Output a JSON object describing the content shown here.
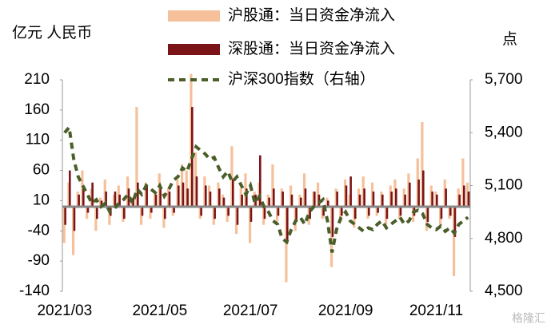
{
  "chart_data": {
    "type": "bar_line",
    "unit_left": "亿元  人民币",
    "unit_right": "点",
    "watermark": "格隆汇",
    "categories": [
      "2021/03",
      null,
      null,
      null,
      null,
      null,
      null,
      null,
      null,
      null,
      null,
      null,
      null,
      null,
      null,
      null,
      null,
      null,
      null,
      null,
      null,
      "2021/05",
      null,
      null,
      null,
      null,
      null,
      null,
      null,
      null,
      null,
      null,
      null,
      null,
      null,
      null,
      null,
      null,
      null,
      null,
      null,
      "2021/07",
      null,
      null,
      null,
      null,
      null,
      null,
      null,
      null,
      null,
      null,
      null,
      null,
      null,
      null,
      null,
      null,
      null,
      null,
      null,
      null,
      "2021/09",
      null,
      null,
      null,
      null,
      null,
      null,
      null,
      null,
      null,
      null,
      null,
      null,
      null,
      null,
      null,
      null,
      null,
      null,
      null,
      "2021/11",
      null,
      null,
      null,
      null,
      null,
      null,
      null
    ],
    "series": [
      {
        "name": "沪股通：当日资金净流入",
        "color": "#f5c09a",
        "values": [
          -60,
          40,
          -80,
          25,
          60,
          -20,
          30,
          -40,
          15,
          45,
          -30,
          20,
          35,
          -25,
          50,
          10,
          165,
          -30,
          40,
          -20,
          25,
          55,
          -35,
          30,
          -15,
          45,
          70,
          60,
          220,
          90,
          -20,
          50,
          35,
          -30,
          40,
          20,
          -25,
          100,
          -45,
          30,
          55,
          -60,
          25,
          40,
          -30,
          20,
          70,
          -25,
          30,
          -125,
          35,
          -40,
          20,
          55,
          -30,
          25,
          40,
          -20,
          15,
          -100,
          30,
          -25,
          45,
          20,
          -35,
          30,
          50,
          -20,
          40,
          -15,
          25,
          -30,
          35,
          45,
          -20,
          30,
          55,
          -25,
          80,
          140,
          -40,
          35,
          25,
          -30,
          45,
          -20,
          -115,
          30,
          80,
          40
        ]
      },
      {
        "name": "深股通：当日资金净流入",
        "color": "#7b1416",
        "values": [
          -30,
          60,
          -40,
          20,
          30,
          -10,
          40,
          -20,
          10,
          25,
          -15,
          25,
          20,
          -20,
          30,
          15,
          40,
          -15,
          35,
          -10,
          20,
          30,
          -20,
          25,
          -10,
          35,
          40,
          30,
          165,
          50,
          -15,
          35,
          25,
          -20,
          30,
          15,
          -15,
          45,
          -30,
          20,
          30,
          -25,
          20,
          85,
          -20,
          15,
          30,
          -15,
          25,
          -60,
          20,
          -25,
          15,
          30,
          -20,
          25,
          20,
          -15,
          10,
          -50,
          25,
          -15,
          35,
          50,
          -20,
          20,
          30,
          -15,
          25,
          -10,
          20,
          -20,
          25,
          30,
          -15,
          20,
          40,
          -15,
          45,
          60,
          -25,
          25,
          20,
          -20,
          30,
          -15,
          -50,
          20,
          35,
          25
        ]
      },
      {
        "name": "沪深300指数（右轴）",
        "color": "#4a5e2a",
        "axis": "y2",
        "dashed": true,
        "values": [
          5400,
          5430,
          5250,
          5150,
          5100,
          5050,
          5000,
          5020,
          4980,
          5000,
          4950,
          4970,
          5000,
          5020,
          5050,
          5000,
          5080,
          5050,
          5100,
          5080,
          5060,
          5100,
          5040,
          5080,
          5130,
          5150,
          5200,
          5180,
          5250,
          5320,
          5300,
          5280,
          5250,
          5260,
          5200,
          5150,
          5180,
          5120,
          5150,
          5100,
          5050,
          5100,
          5000,
          5040,
          4980,
          4950,
          4900,
          4880,
          4800,
          4780,
          4850,
          4900,
          4920,
          4880,
          4950,
          4980,
          5000,
          5020,
          4900,
          4720,
          4850,
          4920,
          4950,
          4900,
          4880,
          4860,
          4840,
          4860,
          4850,
          4880,
          4900,
          4860,
          4880,
          4900,
          4920,
          4880,
          4900,
          4950,
          4960,
          4940,
          4880,
          4860,
          4850,
          4870,
          4840,
          4860,
          4830,
          4880,
          4900,
          4920
        ]
      }
    ],
    "ylim": [
      -140,
      210
    ],
    "yticks": [
      -140,
      -90,
      -40,
      10,
      60,
      110,
      160,
      210
    ],
    "y2lim": [
      4500,
      5700
    ],
    "y2ticks": [
      {
        "value": 4500,
        "label": "4,500"
      },
      {
        "value": 4800,
        "label": "4,800"
      },
      {
        "value": 5100,
        "label": "5,100"
      },
      {
        "value": 5400,
        "label": "5,400"
      },
      {
        "value": 5700,
        "label": "5,700"
      }
    ],
    "legend": "top"
  }
}
